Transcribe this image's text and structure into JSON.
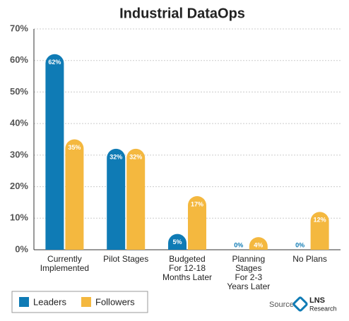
{
  "chart_data": {
    "type": "bar",
    "title": "Industrial DataOps",
    "categories": [
      "Currently\nImplemented",
      "Pilot Stages",
      "Budgeted\nFor 12-18\nMonths Later",
      "Planning\nStages\nFor 2-3\nYears Later",
      "No Plans"
    ],
    "series": [
      {
        "name": "Leaders",
        "color": "#0f7bb5",
        "values": [
          62,
          32,
          5,
          0,
          0
        ],
        "value_labels": [
          "62%",
          "32%",
          "5%",
          "0%",
          "0%"
        ]
      },
      {
        "name": "Followers",
        "color": "#f4b83f",
        "values": [
          35,
          32,
          17,
          4,
          12
        ],
        "value_labels": [
          "35%",
          "32%",
          "17%",
          "4%",
          "12%"
        ]
      }
    ],
    "ylim": [
      0,
      70
    ],
    "yticks": [
      {
        "value": 0,
        "label": "0%"
      },
      {
        "value": 10,
        "label": "10%"
      },
      {
        "value": 20,
        "label": "20%"
      },
      {
        "value": 30,
        "label": "30%"
      },
      {
        "value": 40,
        "label": "40%"
      },
      {
        "value": 50,
        "label": "50%"
      },
      {
        "value": 60,
        "label": "60%"
      },
      {
        "value": 70,
        "label": "70%"
      }
    ],
    "grid": true,
    "source": "Source:",
    "logo": [
      "LNS",
      "Research"
    ]
  }
}
